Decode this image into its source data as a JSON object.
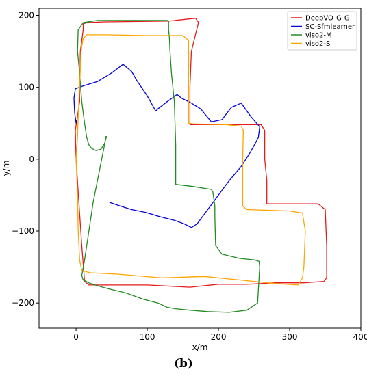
{
  "caption": "(b)",
  "chart_data": {
    "type": "line",
    "xlabel": "x/m",
    "ylabel": "y/m",
    "xlim": [
      -52,
      400
    ],
    "ylim": [
      -235,
      210
    ],
    "xticks": [
      0,
      100,
      200,
      300,
      400
    ],
    "yticks": [
      -200,
      -100,
      0,
      100,
      200
    ],
    "legend_position": "top-right",
    "grid": false,
    "series": [
      {
        "name": "DeepVO-G-G",
        "color": "#e41a1c",
        "x": [
          -1,
          5,
          6,
          10,
          10,
          15,
          40,
          130,
          168,
          172,
          162,
          160,
          160,
          210,
          260,
          265,
          265,
          268,
          268,
          340,
          350,
          352,
          352,
          348,
          320,
          280,
          240,
          200,
          160,
          100,
          60,
          18,
          12,
          8,
          4,
          0,
          -1
        ],
        "y": [
          40,
          80,
          150,
          180,
          188,
          190,
          191,
          192,
          196,
          190,
          150,
          100,
          48,
          48,
          48,
          40,
          0,
          -30,
          -62,
          -62,
          -70,
          -120,
          -165,
          -170,
          -172,
          -172,
          -174,
          -174,
          -178,
          -175,
          -175,
          -175,
          -170,
          -120,
          -60,
          0,
          40
        ]
      },
      {
        "name": "SC-Sfmlearner",
        "color": "#0000dd",
        "x": [
          47,
          62,
          78,
          98,
          118,
          138,
          152,
          162,
          170,
          185,
          200,
          215,
          232,
          245,
          256,
          258,
          245,
          232,
          218,
          205,
          190,
          175,
          162,
          148,
          142,
          128,
          115,
          112,
          100,
          85,
          78,
          66,
          50,
          30,
          10,
          -1,
          -3,
          -2,
          0,
          0
        ],
        "y": [
          -60,
          -65,
          -70,
          -74,
          -80,
          -85,
          -90,
          -95,
          -90,
          -70,
          -50,
          -30,
          -10,
          10,
          30,
          45,
          60,
          78,
          72,
          55,
          52,
          70,
          78,
          85,
          90,
          80,
          70,
          67,
          88,
          110,
          122,
          132,
          120,
          108,
          102,
          98,
          85,
          65,
          50,
          55
        ]
      },
      {
        "name": "viso2-M",
        "color": "#228b22",
        "x": [
          42,
          40,
          36,
          30,
          24,
          18,
          12,
          8,
          10,
          18,
          30,
          45,
          70,
          95,
          115,
          128,
          140,
          160,
          185,
          215,
          240,
          255,
          258,
          257,
          250,
          230,
          205,
          196,
          195,
          195,
          192,
          190,
          165,
          140,
          140,
          138,
          134,
          132,
          131,
          130,
          130,
          130,
          129,
          128,
          126,
          85,
          30,
          10,
          3,
          2,
          5,
          8,
          12,
          15,
          18,
          22,
          28,
          35,
          40,
          43
        ],
        "y": [
          32,
          20,
          0,
          -30,
          -60,
          -100,
          -140,
          -162,
          -168,
          -172,
          -176,
          -180,
          -186,
          -195,
          -200,
          -206,
          -208,
          -210,
          -212,
          -213,
          -210,
          -200,
          -150,
          -142,
          -140,
          -138,
          -132,
          -120,
          -80,
          -65,
          -45,
          -42,
          -38,
          -35,
          20,
          80,
          120,
          150,
          170,
          180,
          188,
          192,
          193,
          193,
          193,
          193,
          193,
          190,
          180,
          150,
          120,
          80,
          50,
          30,
          20,
          15,
          12,
          14,
          22,
          32
        ]
      },
      {
        "name": "viso2-S",
        "color": "#ffa500",
        "x": [
          0,
          2,
          3,
          5,
          7,
          10,
          15,
          40,
          100,
          150,
          158,
          158,
          158,
          165,
          210,
          232,
          235,
          234,
          234,
          240,
          300,
          318,
          322,
          320,
          318,
          312,
          280,
          230,
          180,
          120,
          60,
          20,
          8,
          5,
          3,
          2,
          0
        ],
        "y": [
          0,
          30,
          60,
          100,
          150,
          168,
          173,
          173,
          172,
          172,
          165,
          100,
          50,
          49,
          48,
          46,
          40,
          0,
          -65,
          -70,
          -72,
          -75,
          -100,
          -150,
          -165,
          -175,
          -173,
          -168,
          -163,
          -165,
          -160,
          -158,
          -155,
          -140,
          -100,
          -50,
          0
        ]
      }
    ]
  }
}
